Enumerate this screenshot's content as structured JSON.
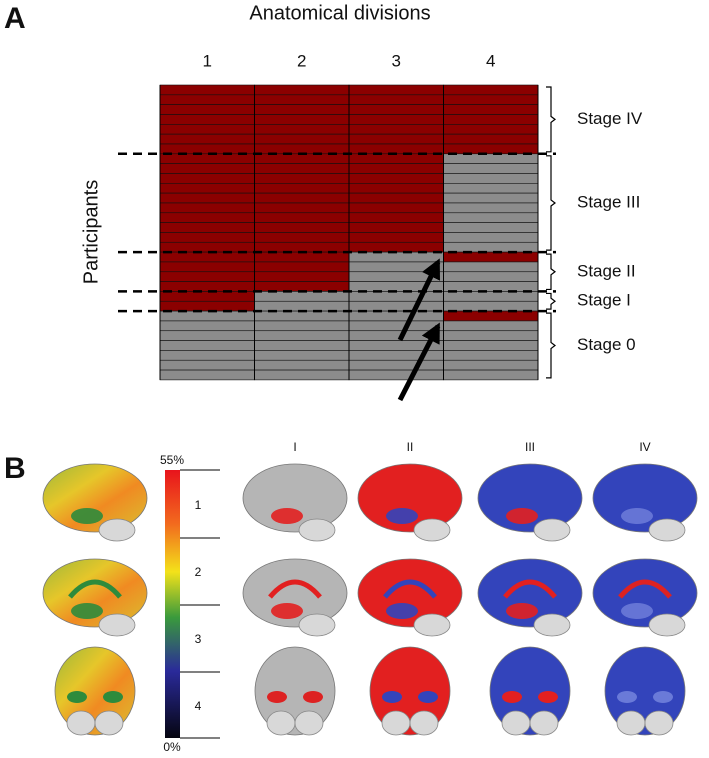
{
  "panel_a": {
    "label": "A",
    "title": "Anatomical divisions",
    "columns": [
      "1",
      "2",
      "3",
      "4"
    ],
    "y_label": "Participants",
    "stages": [
      "Stage IV",
      "Stage III",
      "Stage II",
      "Stage I",
      "Stage 0"
    ]
  },
  "panel_b": {
    "label": "B",
    "colorbar": {
      "max": "55%",
      "min": "0%",
      "labels": [
        "1",
        "2",
        "3",
        "4"
      ]
    },
    "columns": [
      "I",
      "II",
      "III",
      "IV"
    ]
  }
}
